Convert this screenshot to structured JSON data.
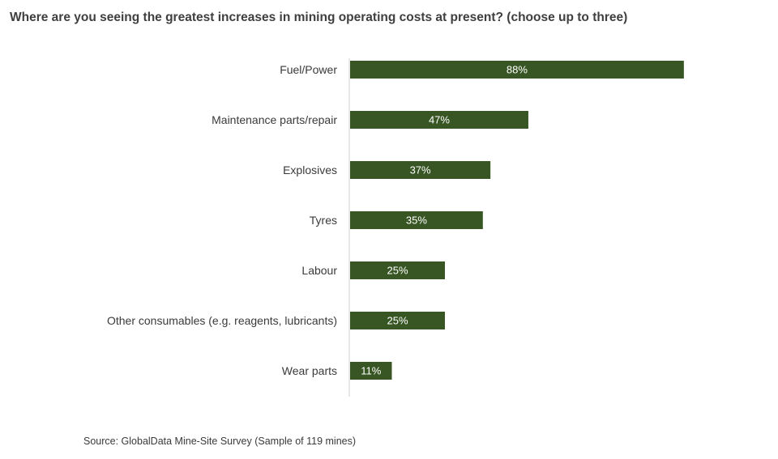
{
  "chart_data": {
    "type": "bar",
    "orientation": "horizontal",
    "title": "Where are you seeing the greatest increases in mining operating costs at present? (choose up to three)",
    "categories": [
      "Fuel/Power",
      "Maintenance parts/repair",
      "Explosives",
      "Tyres",
      "Labour",
      "Other consumables (e.g. reagents, lubricants)",
      "Wear parts"
    ],
    "values": [
      88,
      47,
      37,
      35,
      25,
      25,
      11
    ],
    "data_labels": [
      "88%",
      "47%",
      "37%",
      "35%",
      "25%",
      "25%",
      "11%"
    ],
    "unit": "%",
    "xlim": [
      0,
      100
    ],
    "grid": false,
    "legend": "none",
    "bar_color": "#375623",
    "label_color": "#ffffff",
    "source": "Source: GlobalData Mine-Site Survey (Sample of 119 mines)"
  }
}
